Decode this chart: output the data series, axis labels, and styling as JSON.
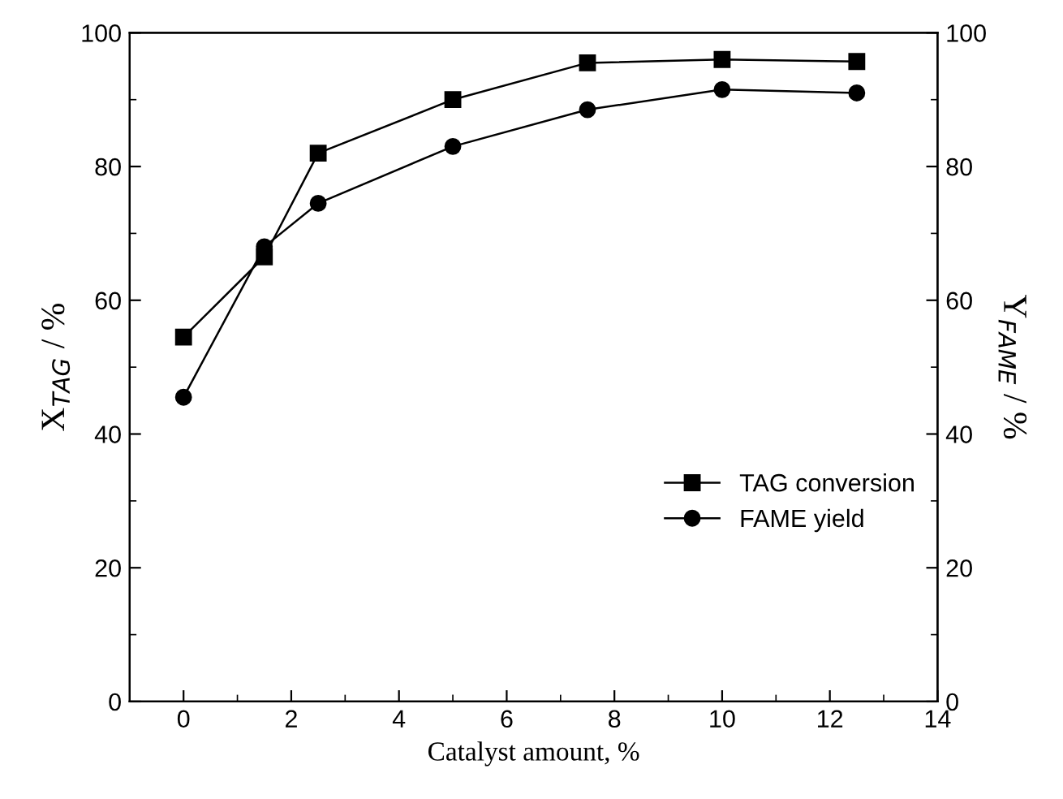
{
  "chart_data": {
    "type": "line",
    "xlabel": "Catalyst amount, %",
    "ylabel": "X$_{TAG}$ / %",
    "y2label": "Y$_{FAME}$ / %",
    "x": [
      0,
      1.5,
      2.5,
      5,
      7.5,
      10,
      12.5
    ],
    "series": [
      {
        "name": "TAG conversion",
        "color": "#000000",
        "marker": "square",
        "values": [
          54.5,
          66.5,
          82,
          90,
          95.5,
          96,
          95.7
        ]
      },
      {
        "name": "FAME yield",
        "color": "#000000",
        "marker": "circle",
        "values": [
          45.5,
          68,
          74.5,
          83,
          88.5,
          91.5,
          91
        ]
      }
    ],
    "xlim": [
      -1,
      14
    ],
    "xticks": [
      0,
      2,
      4,
      6,
      8,
      10,
      12,
      14
    ],
    "ylim": [
      0,
      100
    ],
    "yticks": [
      0,
      20,
      40,
      60,
      80,
      100
    ],
    "y2lim": [
      0,
      100
    ],
    "y2ticks": [
      0,
      20,
      40,
      60,
      80,
      100
    ],
    "legend": "lower right",
    "grid": false,
    "line_style": "solid"
  }
}
